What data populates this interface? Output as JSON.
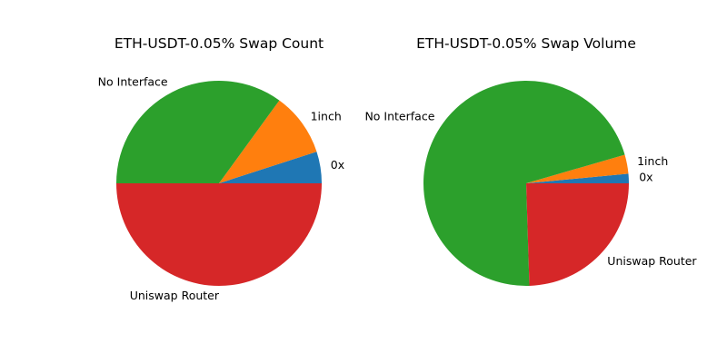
{
  "chart_data": [
    {
      "type": "pie",
      "title": "ETH-USDT-0.05% Swap Count",
      "categories": [
        "0x",
        "1inch",
        "No Interface",
        "Uniswap Router"
      ],
      "values": [
        5,
        10,
        35,
        50
      ],
      "colors": [
        "#1f77b4",
        "#ff7f0e",
        "#2ca02c",
        "#d62728"
      ],
      "start_angle_deg": 0,
      "direction": "counterclockwise",
      "legend": "none"
    },
    {
      "type": "pie",
      "title": "ETH-USDT-0.05% Swap Volume",
      "categories": [
        "0x",
        "1inch",
        "No Interface",
        "Uniswap Router"
      ],
      "values": [
        1.5,
        3,
        71,
        24.5
      ],
      "colors": [
        "#1f77b4",
        "#ff7f0e",
        "#2ca02c",
        "#d62728"
      ],
      "start_angle_deg": 0,
      "direction": "counterclockwise",
      "legend": "none"
    }
  ]
}
